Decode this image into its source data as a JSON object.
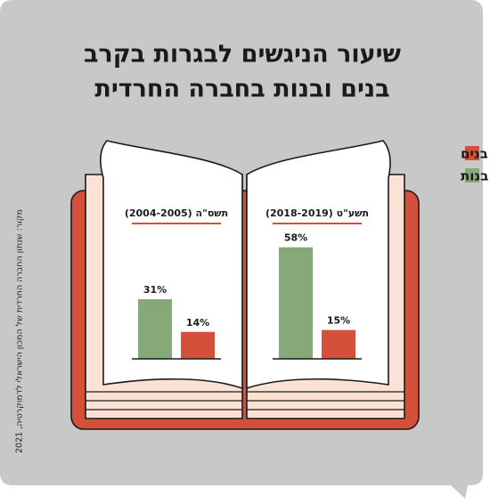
{
  "chart_data": {
    "type": "bar",
    "title": [
      "שיעור הניגשים לבגרות בקרב",
      "בנים ובנות בחברה החרדית"
    ],
    "categories": [
      "תשע\"ט (2018-2019)",
      "תשס\"ה (2004-2005)"
    ],
    "series": [
      {
        "name": "בנים",
        "color": "#d4503a",
        "values": [
          15,
          14
        ],
        "value_labels": [
          "15%",
          "14%"
        ]
      },
      {
        "name": "בנות",
        "color": "#86a97a",
        "values": [
          58,
          31
        ],
        "value_labels": [
          "58%",
          "31%"
        ]
      }
    ],
    "source": "מקור: שנתון החברה החרדית של המכון הישראלי לדמוקרטיה, 2021"
  }
}
